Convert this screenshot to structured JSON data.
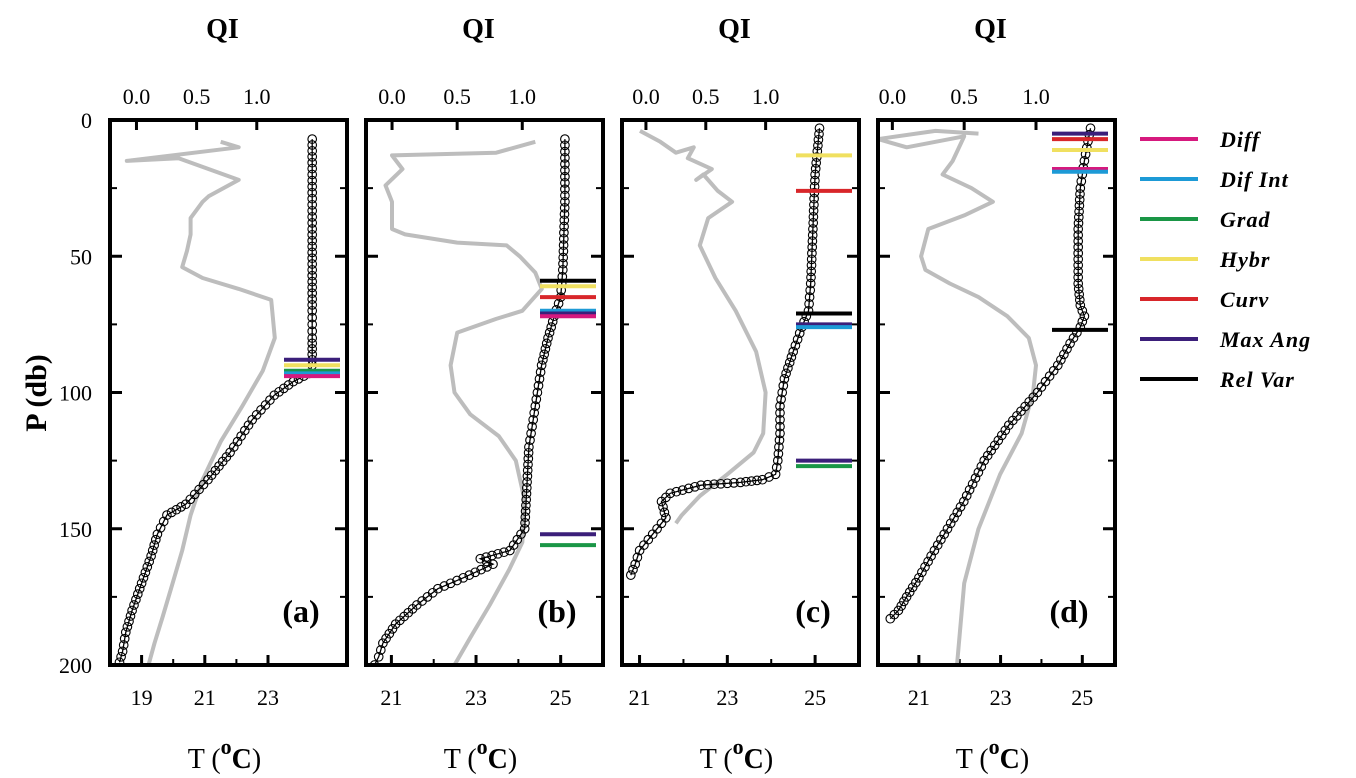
{
  "chart_data": {
    "type": "line",
    "ylabel": "P (db)",
    "ylim": [
      200,
      0
    ],
    "yticks": [
      0,
      50,
      100,
      150,
      200
    ],
    "legend": {
      "placement": "right",
      "entries": [
        {
          "name": "Diff",
          "color": "#d6197e"
        },
        {
          "name": "Dif Int",
          "color": "#1d9ad6"
        },
        {
          "name": "Grad",
          "color": "#1a9646"
        },
        {
          "name": "Hybr",
          "color": "#f0e060"
        },
        {
          "name": "Curv",
          "color": "#d8262a"
        },
        {
          "name": "Max Ang",
          "color": "#3b1f7a"
        },
        {
          "name": "Rel Var",
          "color": "#000000"
        }
      ]
    },
    "panels": [
      {
        "label": "(a)",
        "qi_title": "QI",
        "qi_ticks": [
          "0.0",
          "0.5",
          "1.0"
        ],
        "qi_tick_values": [
          0.0,
          0.5,
          1.0
        ],
        "qi_lim": [
          -0.22,
          1.75
        ],
        "xlabel": "T (oC)",
        "t_ticks": [
          "19",
          "21",
          "23"
        ],
        "t_tick_values": [
          19,
          21,
          23
        ],
        "t_lim": [
          18.0,
          25.5
        ],
        "temperature": {
          "T": [
            24.4,
            24.4,
            24.4,
            24.4,
            24.4,
            24.4,
            24.4,
            24.4,
            24.3,
            23.8,
            23.2,
            22.5,
            21.8,
            21.1,
            20.4,
            19.8,
            19.5,
            19.3,
            19.0,
            18.7,
            18.5,
            18.4,
            18.3
          ],
          "P": [
            7,
            20,
            40,
            55,
            70,
            80,
            86,
            90,
            93,
            96,
            101,
            110,
            122,
            132,
            141,
            145,
            152,
            160,
            170,
            180,
            188,
            195,
            199
          ]
        },
        "qi": {
          "QI": [
            0.7,
            0.85,
            -0.08,
            0.35,
            0.85,
            0.6,
            0.55,
            0.45,
            0.45,
            0.42,
            0.38,
            0.55,
            0.85,
            1.12,
            1.15,
            1.05,
            0.88,
            0.7,
            0.55,
            0.45,
            0.38,
            0.3,
            0.22,
            0.15,
            0.1
          ],
          "P": [
            8,
            10,
            15,
            14,
            22,
            28,
            30,
            36,
            42,
            48,
            54,
            58,
            62,
            66,
            80,
            92,
            105,
            118,
            132,
            145,
            158,
            170,
            182,
            192,
            200
          ]
        },
        "markers": [
          {
            "method": "Max Ang",
            "P": 88
          },
          {
            "method": "Hybr",
            "P": 90
          },
          {
            "method": "Grad",
            "P": 92
          },
          {
            "method": "Dif Int",
            "P": 93
          },
          {
            "method": "Diff",
            "P": 94
          }
        ]
      },
      {
        "label": "(b)",
        "qi_title": "QI",
        "qi_ticks": [
          "0.0",
          "0.5",
          "1.0"
        ],
        "qi_tick_values": [
          0.0,
          0.5,
          1.0
        ],
        "qi_lim": [
          -0.2,
          1.62
        ],
        "xlabel": "T (oC)",
        "t_ticks": [
          "21",
          "23",
          "25"
        ],
        "t_tick_values": [
          21,
          23,
          25
        ],
        "t_lim": [
          20.4,
          26.0
        ],
        "temperature": {
          "T": [
            25.1,
            25.1,
            25.05,
            25.0,
            24.85,
            24.7,
            24.55,
            24.45,
            24.35,
            24.25,
            24.2,
            24.15,
            23.8,
            23.1,
            23.4,
            22.7,
            22.1,
            21.6,
            21.1,
            20.8,
            20.7,
            20.6
          ],
          "P": [
            7,
            30,
            55,
            65,
            72,
            80,
            90,
            100,
            110,
            120,
            135,
            150,
            158,
            161,
            163,
            168,
            172,
            178,
            185,
            192,
            197,
            200
          ]
        },
        "qi": {
          "QI": [
            1.1,
            0.8,
            0.0,
            0.08,
            -0.05,
            0.0,
            0.0,
            0.1,
            0.5,
            0.88,
            0.98,
            1.1,
            1.15,
            1.0,
            0.8,
            0.5,
            0.45,
            0.48,
            0.6,
            0.82,
            0.95,
            1.02,
            1.0,
            0.9,
            0.75,
            0.6,
            0.48
          ],
          "P": [
            8,
            12,
            13,
            18,
            24,
            30,
            40,
            42,
            45,
            46,
            50,
            56,
            62,
            70,
            73,
            78,
            90,
            100,
            108,
            116,
            125,
            140,
            155,
            165,
            178,
            190,
            200
          ]
        },
        "markers": [
          {
            "method": "Rel Var",
            "P": 59
          },
          {
            "method": "Hybr",
            "P": 61
          },
          {
            "method": "Curv",
            "P": 65
          },
          {
            "method": "Dif Int",
            "P": 70
          },
          {
            "method": "Max Ang",
            "P": 71
          },
          {
            "method": "Diff",
            "P": 72
          },
          {
            "method": "Max Ang",
            "P": 152
          },
          {
            "method": "Grad",
            "P": 156
          }
        ]
      },
      {
        "label": "(c)",
        "qi_title": "QI",
        "qi_ticks": [
          "0.0",
          "0.5",
          "1.0"
        ],
        "qi_tick_values": [
          0.0,
          0.5,
          1.0
        ],
        "qi_lim": [
          -0.2,
          1.78
        ],
        "xlabel": "T (oC)",
        "t_ticks": [
          "21",
          "23",
          "25"
        ],
        "t_tick_values": [
          21,
          23,
          25
        ],
        "t_lim": [
          20.6,
          26.0
        ],
        "temperature": {
          "T": [
            25.1,
            25.0,
            24.95,
            24.9,
            24.85,
            24.7,
            24.5,
            24.3,
            24.2,
            24.2,
            24.15,
            24.1,
            23.8,
            23.3,
            22.4,
            21.7,
            21.5,
            21.6,
            21.3,
            21.0,
            20.9,
            20.8
          ],
          "P": [
            3,
            20,
            40,
            60,
            70,
            76,
            85,
            95,
            105,
            115,
            125,
            130,
            132,
            133,
            134,
            137,
            140,
            146,
            152,
            158,
            163,
            167
          ]
        },
        "qi": {
          "QI": [
            -0.05,
            0.12,
            0.25,
            0.4,
            0.35,
            0.55,
            0.42,
            0.48,
            0.6,
            0.72,
            0.52,
            0.45,
            0.58,
            0.75,
            0.92,
            1.0,
            0.98,
            0.9,
            0.68,
            0.45,
            0.3,
            0.25
          ],
          "P": [
            4,
            8,
            12,
            10,
            14,
            18,
            22,
            20,
            26,
            30,
            36,
            46,
            58,
            70,
            85,
            100,
            115,
            122,
            130,
            138,
            145,
            148
          ]
        },
        "markers": [
          {
            "method": "Hybr",
            "P": 13
          },
          {
            "method": "Curv",
            "P": 26
          },
          {
            "method": "Rel Var",
            "P": 71
          },
          {
            "method": "Max Ang",
            "P": 75
          },
          {
            "method": "Dif Int",
            "P": 76
          },
          {
            "method": "Max Ang",
            "P": 125
          },
          {
            "method": "Grad",
            "P": 127
          }
        ]
      },
      {
        "label": "(d)",
        "qi_title": "QI",
        "qi_ticks": [
          "0.0",
          "0.5",
          "1.0"
        ],
        "qi_tick_values": [
          0.0,
          0.5,
          1.0
        ],
        "qi_lim": [
          -0.1,
          1.55
        ],
        "xlabel": "T (oC)",
        "t_ticks": [
          "21",
          "23",
          "25"
        ],
        "t_tick_values": [
          21,
          23,
          25
        ],
        "t_lim": [
          20.0,
          25.8
        ],
        "temperature": {
          "T": [
            25.2,
            25.05,
            24.95,
            24.9,
            24.9,
            24.95,
            25.05,
            24.95,
            24.7,
            24.4,
            23.9,
            23.2,
            22.6,
            22.1,
            21.7,
            21.3,
            21.0,
            20.7,
            20.5,
            20.3
          ],
          "P": [
            3,
            15,
            25,
            40,
            60,
            68,
            72,
            76,
            82,
            90,
            100,
            112,
            125,
            140,
            150,
            160,
            168,
            175,
            180,
            183
          ]
        },
        "qi": {
          "QI": [
            0.6,
            0.3,
            -0.1,
            0.1,
            0.5,
            0.42,
            0.35,
            0.55,
            0.7,
            0.5,
            0.25,
            0.2,
            0.23,
            0.4,
            0.6,
            0.8,
            0.95,
            1.0,
            0.98,
            0.9,
            0.75,
            0.6,
            0.5,
            0.45
          ],
          "P": [
            5,
            4,
            7,
            10,
            6,
            15,
            20,
            25,
            30,
            35,
            40,
            50,
            55,
            60,
            65,
            72,
            80,
            90,
            100,
            115,
            130,
            150,
            170,
            200
          ]
        },
        "markers": [
          {
            "method": "Max Ang",
            "P": 5
          },
          {
            "method": "Curv",
            "P": 7
          },
          {
            "method": "Hybr",
            "P": 11
          },
          {
            "method": "Diff",
            "P": 18
          },
          {
            "method": "Dif Int",
            "P": 19
          },
          {
            "method": "Rel Var",
            "P": 77
          }
        ]
      }
    ]
  }
}
